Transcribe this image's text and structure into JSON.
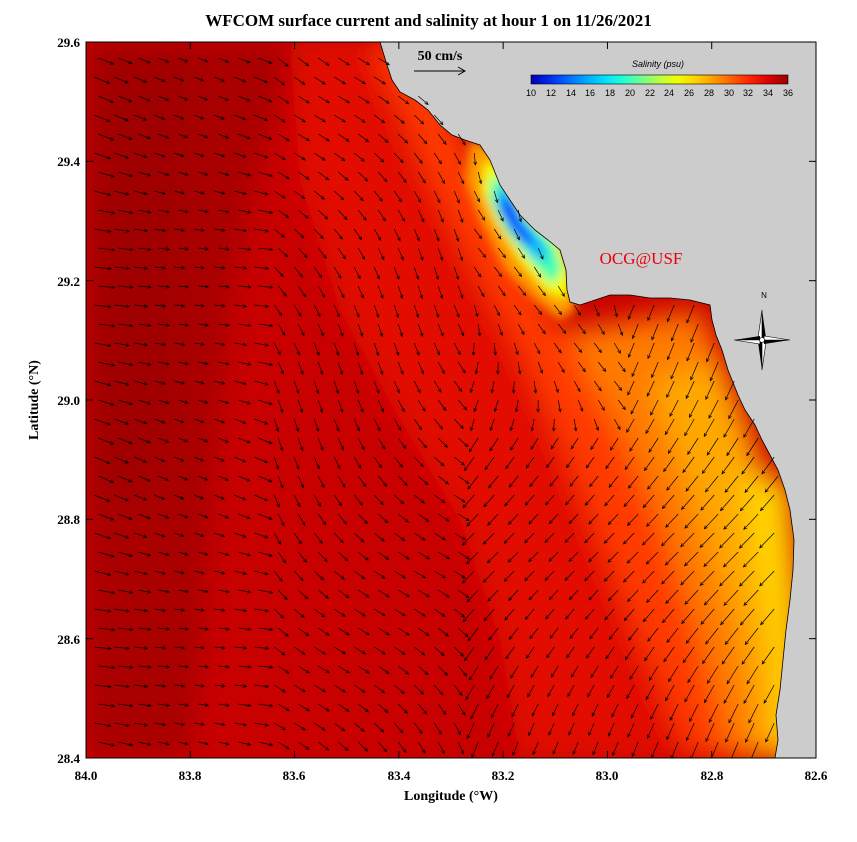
{
  "title": "WFCOM surface current and salinity at hour 1 on 11/26/2021",
  "credit": "OCG@USF",
  "north_label": "N",
  "colors": {
    "land": "#cccccc",
    "coastline": "#000000",
    "vectors": "#000000",
    "credit": "#e8000a"
  },
  "map": {
    "lon_range_W": [
      84.0,
      82.6
    ],
    "lat_range_N": [
      28.4,
      29.6
    ],
    "xlabel": "Longitude (°W)",
    "ylabel": "Latitude (°N)",
    "x_ticks": [
      "84.0",
      "83.8",
      "83.6",
      "83.4",
      "83.2",
      "83.0",
      "82.8",
      "82.6"
    ],
    "y_ticks": [
      "29.6",
      "29.4",
      "29.2",
      "29.0",
      "28.8",
      "28.6",
      "28.4"
    ]
  },
  "scale_vector": {
    "label": "50 cm/s",
    "speed_cm_s": 50
  },
  "colorbar": {
    "title": "Salinity (psu)",
    "min": 10,
    "max": 36,
    "tick_labels": [
      "10",
      "12",
      "14",
      "16",
      "18",
      "20",
      "22",
      "24",
      "26",
      "28",
      "30",
      "32",
      "34",
      "36"
    ],
    "colors": [
      "#0000b4",
      "#0028f0",
      "#0068ff",
      "#00a8ff",
      "#00e0ff",
      "#20ffd8",
      "#70ff90",
      "#b8ff40",
      "#f0ff00",
      "#ffd000",
      "#ff9800",
      "#ff5a00",
      "#ff1e00",
      "#d80000",
      "#9a0000"
    ]
  }
}
